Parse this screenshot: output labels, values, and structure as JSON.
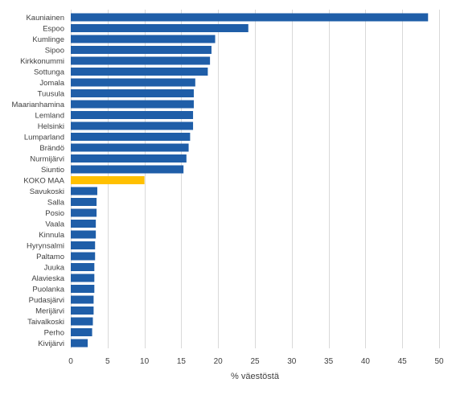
{
  "chart_data": {
    "type": "bar",
    "orientation": "horizontal",
    "categories": [
      "Kauniainen",
      "Espoo",
      "Kumlinge",
      "Sipoo",
      "Kirkkonummi",
      "Sottunga",
      "Jomala",
      "Tuusula",
      "Maarianhamina",
      "Lemland",
      "Helsinki",
      "Lumparland",
      "Brändö",
      "Nurmijärvi",
      "Siuntio",
      "KOKO MAA",
      "Savukoski",
      "Salla",
      "Posio",
      "Vaala",
      "Kinnula",
      "Hyrynsalmi",
      "Paltamo",
      "Juuka",
      "Alavieska",
      "Puolanka",
      "Pudasjärvi",
      "Merijärvi",
      "Taivalkoski",
      "Perho",
      "Kivijärvi"
    ],
    "values": [
      48.5,
      24.1,
      19.6,
      19.1,
      18.9,
      18.6,
      16.9,
      16.7,
      16.7,
      16.6,
      16.6,
      16.2,
      16.0,
      15.7,
      15.3,
      10.0,
      3.6,
      3.5,
      3.5,
      3.4,
      3.4,
      3.3,
      3.3,
      3.2,
      3.2,
      3.2,
      3.1,
      3.1,
      3.0,
      2.9,
      2.3
    ],
    "highlight_category": "KOKO MAA",
    "colors": {
      "bar": "#1f5ea8",
      "highlight": "#ffc000",
      "grid": "#d9d9d9",
      "text": "#404040"
    },
    "xlim": [
      0,
      50
    ],
    "xticks": [
      0,
      5,
      10,
      15,
      20,
      25,
      30,
      35,
      40,
      45,
      50
    ],
    "xlabel": "% väestöstä",
    "grid": "vertical"
  }
}
